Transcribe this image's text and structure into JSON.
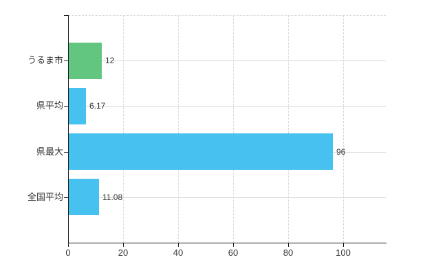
{
  "chart_data": {
    "type": "bar",
    "orientation": "horizontal",
    "title": "",
    "xlabel": "",
    "ylabel": "",
    "categories": [
      "うるま市",
      "県平均",
      "県最大",
      "全国平均"
    ],
    "values": [
      12,
      6.17,
      96,
      11.08
    ],
    "value_labels": [
      "12",
      "6.17",
      "96",
      "11.08"
    ],
    "bar_colors": [
      "#62c681",
      "#47c1f0",
      "#47c1f0",
      "#47c1f0"
    ],
    "x_ticks": [
      0,
      20,
      40,
      60,
      80,
      100
    ],
    "x_tick_labels": [
      "0",
      "20",
      "40",
      "60",
      "80",
      "100"
    ],
    "xlim": [
      0,
      115.5
    ],
    "grid": true,
    "legend": "none",
    "colors": {
      "highlight_bar": "#62c681",
      "default_bar": "#47c1f0",
      "axis": "#1a1a1a",
      "gridline_vertical": "#d9d9d9",
      "gridline_horizontal": "#d3ddd3",
      "label_text": "#333333",
      "background": "#ffffff"
    }
  }
}
